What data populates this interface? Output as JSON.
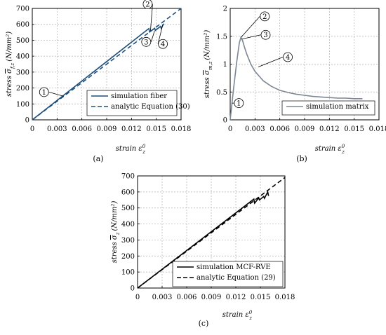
{
  "chart_data": [
    {
      "type": "line",
      "caption": "(a)",
      "xlabel": "strain ε_z^0",
      "ylabel": "stress σ_f,z (N/mm²)",
      "xlim": [
        0,
        0.018
      ],
      "ylim": [
        0,
        700
      ],
      "xticks": [
        "0",
        "0.003",
        "0.006",
        "0.009",
        "0.012",
        "0.015",
        "0.018"
      ],
      "yticks": [
        "0",
        "100",
        "200",
        "300",
        "400",
        "500",
        "600",
        "700"
      ],
      "grid": true,
      "legend_position": "bottom-right",
      "series": [
        {
          "name": "simulation fiber",
          "style": "solid",
          "color": "#1f4e79",
          "x": [
            0,
            0.0134,
            0.0141,
            0.0142,
            0.0148,
            0.0149,
            0.0155,
            0.0156,
            0.0159
          ],
          "y": [
            0,
            545,
            573,
            552,
            575,
            562,
            587,
            575,
            604
          ]
        },
        {
          "name": "analytic Equation (30)",
          "style": "dashed",
          "color": "#1f4e79",
          "x": [
            0,
            0.018
          ],
          "y": [
            0,
            700
          ]
        }
      ],
      "annotations": [
        {
          "label": "1",
          "x": 0.0038,
          "y": 148
        },
        {
          "label": "2",
          "x": 0.0143,
          "y": 560
        },
        {
          "label": "3",
          "x": 0.0148,
          "y": 560
        },
        {
          "label": "4",
          "x": 0.0158,
          "y": 600
        }
      ]
    },
    {
      "type": "line",
      "caption": "(b)",
      "xlabel": "strain ε_z^0",
      "ylabel": "stress σ_m,z (N/mm²)",
      "xlim": [
        0,
        0.018
      ],
      "ylim": [
        0,
        2
      ],
      "xticks": [
        "0",
        "0.003",
        "0.006",
        "0.009",
        "0.012",
        "0.015",
        "0.018"
      ],
      "yticks": [
        "0",
        "0.5",
        "1",
        "1.5",
        "2"
      ],
      "grid": true,
      "legend_position": "bottom-right",
      "series": [
        {
          "name": "simulation matrix",
          "style": "solid",
          "color": "#7b8794",
          "x": [
            0,
            0.0004,
            0.0008,
            0.0011,
            0.0013,
            0.0015,
            0.0017,
            0.002,
            0.0025,
            0.003,
            0.004,
            0.005,
            0.006,
            0.007,
            0.008,
            0.009,
            0.01,
            0.011,
            0.012,
            0.013,
            0.014,
            0.015,
            0.016
          ],
          "y": [
            0,
            0.55,
            1.05,
            1.38,
            1.48,
            1.42,
            1.32,
            1.18,
            1.0,
            0.87,
            0.7,
            0.6,
            0.53,
            0.49,
            0.46,
            0.44,
            0.42,
            0.41,
            0.4,
            0.39,
            0.39,
            0.38,
            0.38
          ]
        }
      ],
      "annotations": [
        {
          "label": "1",
          "x": 0.0002,
          "y": 0.3
        },
        {
          "label": "2",
          "x": 0.0013,
          "y": 1.48
        },
        {
          "label": "3",
          "x": 0.0014,
          "y": 1.45
        },
        {
          "label": "4",
          "x": 0.0034,
          "y": 0.95
        }
      ]
    },
    {
      "type": "line",
      "caption": "(c)",
      "xlabel": "strain ε_z^0",
      "ylabel": "stress σ_z (N/mm²)",
      "xlim": [
        0,
        0.018
      ],
      "ylim": [
        0,
        700
      ],
      "xticks": [
        "0",
        "0.003",
        "0.006",
        "0.009",
        "0.012",
        "0.015",
        "0.018"
      ],
      "yticks": [
        "0",
        "100",
        "200",
        "300",
        "400",
        "500",
        "600",
        "700"
      ],
      "grid": true,
      "legend_position": "bottom-right",
      "series": [
        {
          "name": "simulation MCF-RVE",
          "style": "solid",
          "color": "#000000",
          "x": [
            0,
            0.0142,
            0.0143,
            0.0148,
            0.0149,
            0.0154,
            0.0155,
            0.0159,
            0.016
          ],
          "y": [
            0,
            555,
            530,
            562,
            550,
            572,
            560,
            600,
            575
          ]
        },
        {
          "name": "analytic Equation (29)",
          "style": "dashed",
          "color": "#000000",
          "x": [
            0,
            0.018
          ],
          "y": [
            0,
            690
          ]
        }
      ],
      "annotations": []
    }
  ]
}
